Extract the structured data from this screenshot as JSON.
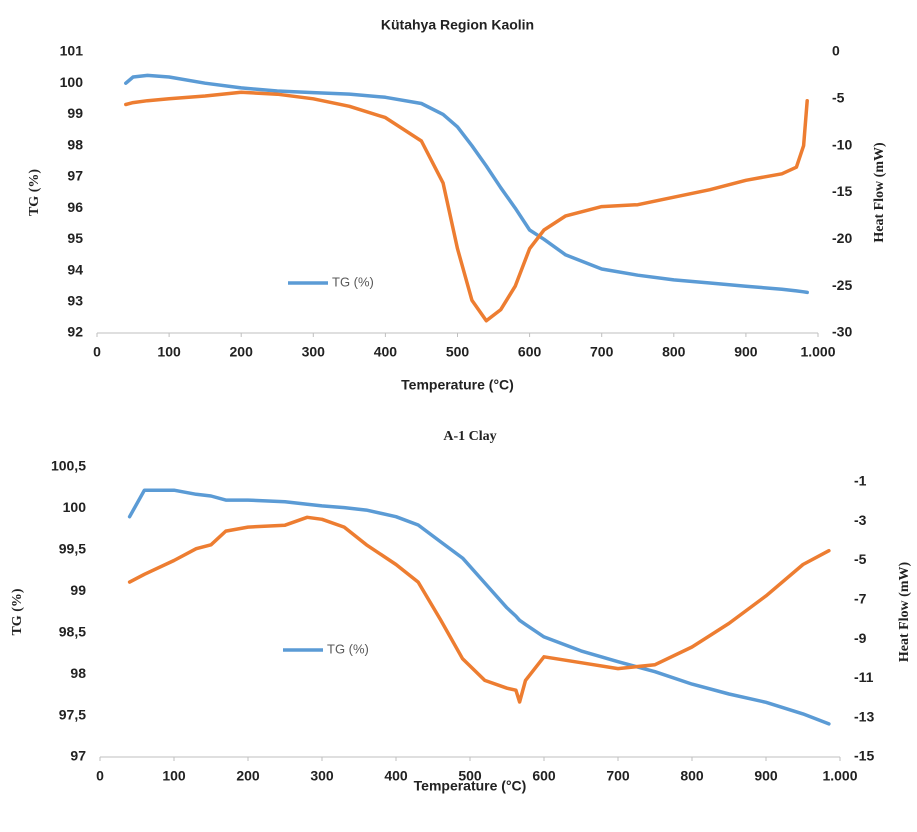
{
  "chart_data": [
    {
      "type": "line",
      "title": "Kütahya Region Kaolin",
      "x_label": "Temperature (°C)",
      "y_label": "TG (%)",
      "y2_label": "Heat Flow (mW)",
      "x": [
        40,
        50,
        70,
        100,
        150,
        200,
        250,
        300,
        350,
        400,
        450,
        480,
        500,
        520,
        540,
        560,
        580,
        600,
        620,
        650,
        700,
        750,
        800,
        850,
        900,
        950,
        970,
        980,
        985
      ],
      "series": [
        {
          "name": "TG (%)",
          "color": "#5b9bd5",
          "values": [
            100.0,
            100.2,
            100.25,
            100.2,
            100.0,
            99.85,
            99.75,
            99.7,
            99.65,
            99.55,
            99.35,
            99.0,
            98.6,
            98.0,
            97.35,
            96.65,
            96.0,
            95.3,
            95.0,
            94.5,
            94.05,
            93.85,
            93.7,
            93.6,
            93.5,
            93.4,
            93.35,
            93.32,
            93.3
          ]
        },
        {
          "color": "#ed7d31",
          "axis": "y2",
          "values": [
            -5.6,
            -5.4,
            -5.2,
            -5.0,
            -4.7,
            -4.3,
            -4.5,
            -5.0,
            -5.8,
            -7.0,
            -9.5,
            -14,
            -21,
            -26.5,
            -28.7,
            -27.5,
            -25,
            -21,
            -19,
            -17.5,
            -16.5,
            -16.3,
            -15.5,
            -14.7,
            -13.7,
            -13,
            -12.3,
            -10,
            -5.2
          ]
        }
      ],
      "xlim": [
        0,
        1000
      ],
      "xticks": [
        0,
        100,
        200,
        300,
        400,
        500,
        600,
        700,
        800,
        900,
        {
          "value": 1000,
          "label": "1.000"
        }
      ],
      "ylim": [
        92,
        101
      ],
      "yticks": [
        92,
        93,
        94,
        95,
        96,
        97,
        98,
        99,
        100,
        101
      ],
      "y2lim": [
        -30,
        0
      ],
      "y2ticks": [
        -30,
        -25,
        -20,
        -15,
        -10,
        -5,
        0
      ],
      "grid": false
    },
    {
      "type": "line",
      "title": "A-1 Clay",
      "x_label": "Temperature (°C)",
      "y_label": "TG (%)",
      "y2_label": "Heat Flow (mW)",
      "x": [
        40,
        60,
        100,
        130,
        150,
        170,
        200,
        250,
        280,
        300,
        330,
        360,
        400,
        430,
        460,
        490,
        520,
        550,
        562,
        567,
        575,
        600,
        650,
        700,
        750,
        800,
        850,
        900,
        950,
        985
      ],
      "series": [
        {
          "name": "TG (%)",
          "color": "#5b9bd5",
          "values": [
            99.9,
            100.22,
            100.22,
            100.17,
            100.15,
            100.1,
            100.1,
            100.08,
            100.05,
            100.03,
            100.01,
            99.98,
            99.9,
            99.8,
            99.6,
            99.4,
            99.1,
            98.8,
            98.7,
            98.65,
            98.6,
            98.45,
            98.28,
            98.15,
            98.03,
            97.88,
            97.76,
            97.66,
            97.52,
            97.4
          ]
        },
        {
          "color": "#ed7d31",
          "axis": "y2",
          "values": [
            -6.1,
            -5.7,
            -5.0,
            -4.4,
            -4.2,
            -3.5,
            -3.3,
            -3.2,
            -2.8,
            -2.9,
            -3.3,
            -4.2,
            -5.2,
            -6.1,
            -8.0,
            -10.0,
            -11.1,
            -11.5,
            -11.6,
            -12.2,
            -11.1,
            -9.9,
            -10.2,
            -10.5,
            -10.3,
            -9.4,
            -8.2,
            -6.8,
            -5.2,
            -4.5
          ]
        }
      ],
      "xlim": [
        0,
        1000
      ],
      "xticks": [
        0,
        100,
        200,
        300,
        400,
        500,
        600,
        700,
        800,
        900,
        {
          "value": 1000,
          "label": "1.000"
        }
      ],
      "ylim": [
        97,
        100.5
      ],
      "yticks": [
        97,
        {
          "value": 97.5,
          "label": "97,5"
        },
        98,
        {
          "value": 98.5,
          "label": "98,5"
        },
        99,
        {
          "value": 99.5,
          "label": "99,5"
        },
        100,
        {
          "value": 100.5,
          "label": "100,5"
        }
      ],
      "y2lim": [
        -15,
        -0.24
      ],
      "y2ticks": [
        -15,
        -13,
        -11,
        -9,
        -7,
        -5,
        -3,
        -1
      ],
      "grid": false
    }
  ]
}
